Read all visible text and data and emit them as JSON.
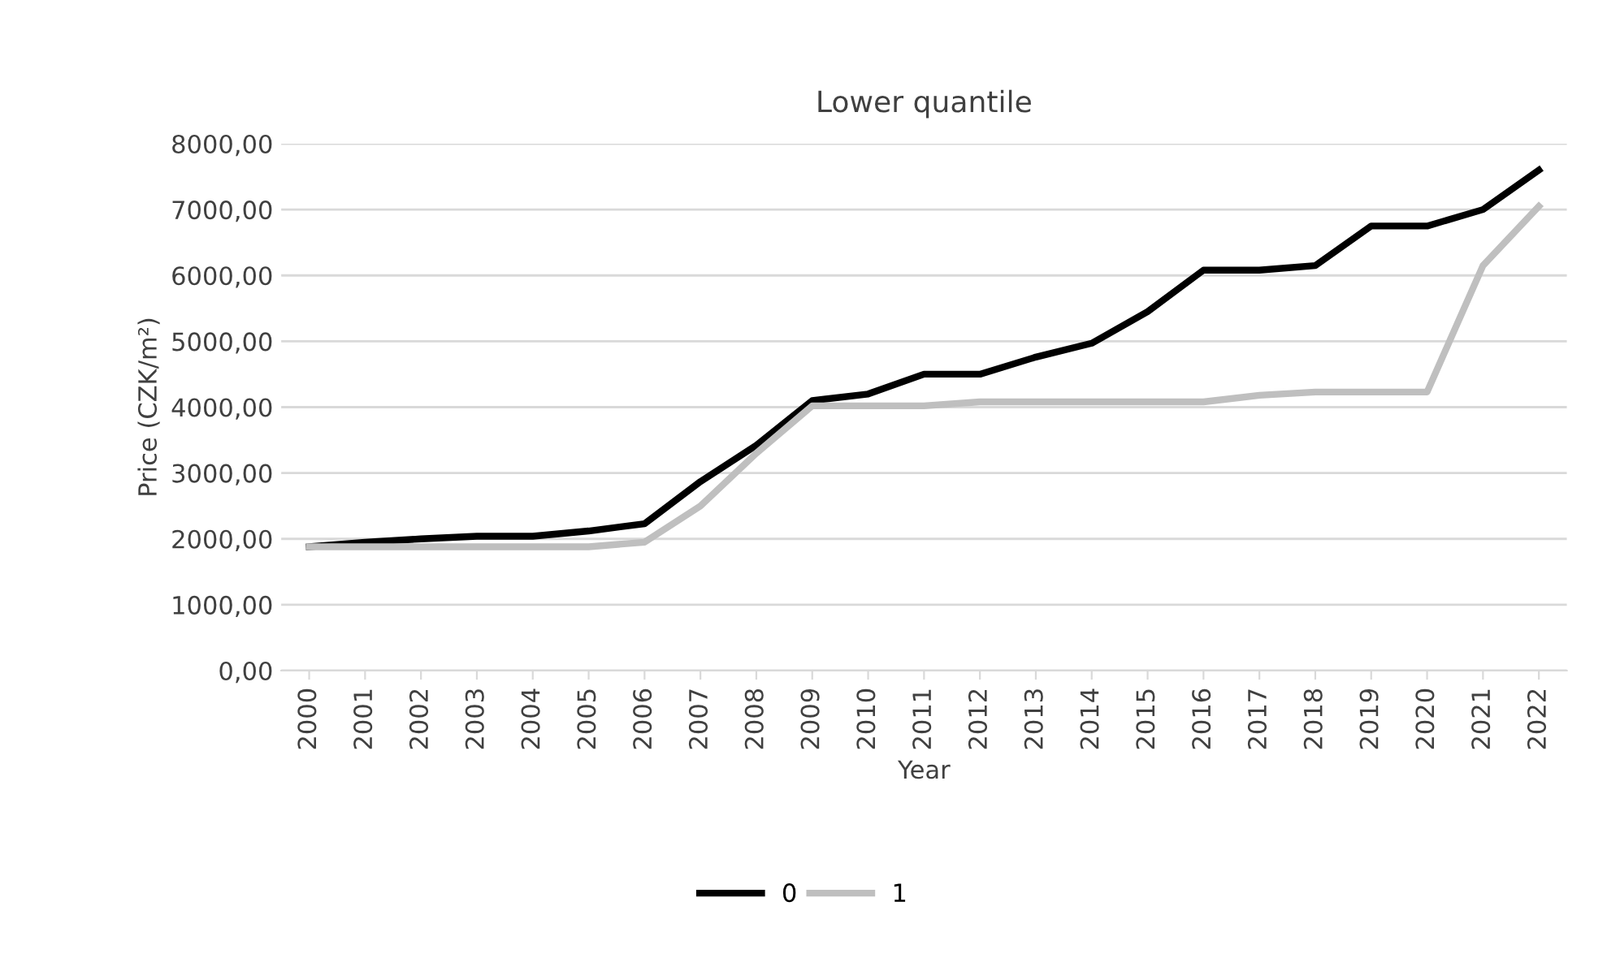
{
  "chart_data": {
    "type": "line",
    "title": "Lower quantile",
    "xlabel": "Year",
    "ylabel": "Price (CZK/m²)",
    "categories": [
      "2000",
      "2001",
      "2002",
      "2003",
      "2004",
      "2005",
      "2006",
      "2007",
      "2008",
      "2009",
      "2010",
      "2011",
      "2012",
      "2013",
      "2014",
      "2015",
      "2016",
      "2017",
      "2018",
      "2019",
      "2020",
      "2021",
      "2022"
    ],
    "series": [
      {
        "name": "0",
        "color": "#000000",
        "values": [
          1880,
          1950,
          2000,
          2040,
          2040,
          2120,
          2230,
          2870,
          3420,
          4100,
          4200,
          4500,
          4500,
          4760,
          4970,
          5450,
          6080,
          6080,
          6150,
          6750,
          6750,
          7000,
          7600
        ]
      },
      {
        "name": "1",
        "color": "#bfbfbf",
        "values": [
          1880,
          1880,
          1880,
          1880,
          1880,
          1880,
          1950,
          2500,
          3300,
          4020,
          4020,
          4020,
          4080,
          4080,
          4080,
          4080,
          4080,
          4180,
          4230,
          4230,
          4230,
          6150,
          7050
        ]
      }
    ],
    "ylim": [
      0,
      8000
    ],
    "yticks": [
      {
        "value": 0,
        "label": "0,00"
      },
      {
        "value": 1000,
        "label": "1000,00"
      },
      {
        "value": 2000,
        "label": "2000,00"
      },
      {
        "value": 3000,
        "label": "3000,00"
      },
      {
        "value": 4000,
        "label": "4000,00"
      },
      {
        "value": 5000,
        "label": "5000,00"
      },
      {
        "value": 6000,
        "label": "6000,00"
      },
      {
        "value": 7000,
        "label": "7000,00"
      },
      {
        "value": 8000,
        "label": "8000,00"
      }
    ],
    "grid": "y",
    "legend": "bottom",
    "marker": "none",
    "line_style": "solid"
  }
}
